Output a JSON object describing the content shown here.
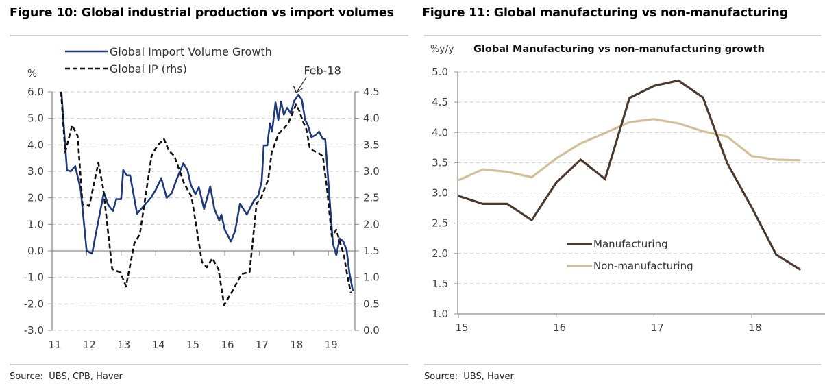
{
  "figures": {
    "fig10": {
      "title": "Figure 10: Global industrial production vs import volumes",
      "source": "Source:  UBS, CPB, Haver"
    },
    "fig11": {
      "title": "Figure 11: Global manufacturing vs non-manufacturing",
      "source": "Source:  UBS, Haver"
    }
  },
  "colors": {
    "import_line": "#1f3a7a",
    "ip_line": "#111111",
    "manufacturing": "#4a3a2e",
    "non_manufacturing": "#d2c09a",
    "grid": "#cccccc",
    "axis": "#8c8c8c",
    "tick_text": "#404040"
  },
  "chart_data": [
    {
      "id": "fig10",
      "type": "line",
      "title": "",
      "ylabel": "%",
      "y2label": "",
      "xlabel": "",
      "xlim": [
        11,
        19.85
      ],
      "ylim": [
        -3.0,
        6.0
      ],
      "y2lim": [
        0.0,
        4.5
      ],
      "x_ticks": [
        11,
        12,
        13,
        14,
        15,
        16,
        17,
        18,
        19
      ],
      "x_tick_labels": [
        "11",
        "12",
        "13",
        "14",
        "15",
        "16",
        "17",
        "18",
        "19"
      ],
      "y_ticks": [
        6.0,
        5.0,
        4.0,
        3.0,
        2.0,
        1.0,
        0.0,
        -1.0,
        -2.0,
        -3.0
      ],
      "y_tick_labels": [
        "6.0",
        "5.0",
        "4.0",
        "3.0",
        "2.0",
        "1.0",
        "0.0",
        "-1.0",
        "-2.0",
        "-3.0"
      ],
      "y2_ticks": [
        4.5,
        4.0,
        3.5,
        3.0,
        2.5,
        2.0,
        1.5,
        1.0,
        0.5,
        0.0
      ],
      "y2_tick_labels": [
        "4.5",
        "4.0",
        "3.5",
        "3.0",
        "2.5",
        "2.0",
        "1.5",
        "1.0",
        "0.5",
        "0.0"
      ],
      "grid": true,
      "legend_position": "top-left",
      "annotation": {
        "text": "Feb-18",
        "x": 18.13,
        "y": 5.89
      },
      "series": [
        {
          "name": "Global Import Volume Growth",
          "axis": "left",
          "style": "solid",
          "points": [
            [
              11.27,
              6.0
            ],
            [
              11.43,
              3.05
            ],
            [
              11.54,
              3.0
            ],
            [
              11.67,
              3.2
            ],
            [
              11.83,
              2.3
            ],
            [
              12.0,
              0.0
            ],
            [
              12.16,
              -0.1
            ],
            [
              12.26,
              0.6
            ],
            [
              12.5,
              2.2
            ],
            [
              12.62,
              1.75
            ],
            [
              12.76,
              1.5
            ],
            [
              12.86,
              1.95
            ],
            [
              13.0,
              1.95
            ],
            [
              13.06,
              3.05
            ],
            [
              13.16,
              2.85
            ],
            [
              13.26,
              2.85
            ],
            [
              13.46,
              1.4
            ],
            [
              13.66,
              1.7
            ],
            [
              13.86,
              2.0
            ],
            [
              14.0,
              2.3
            ],
            [
              14.16,
              2.74
            ],
            [
              14.32,
              2.0
            ],
            [
              14.46,
              2.17
            ],
            [
              14.62,
              2.74
            ],
            [
              14.8,
              3.3
            ],
            [
              14.92,
              3.05
            ],
            [
              15.02,
              2.48
            ],
            [
              15.15,
              2.14
            ],
            [
              15.25,
              2.4
            ],
            [
              15.4,
              1.58
            ],
            [
              15.58,
              2.43
            ],
            [
              15.7,
              1.58
            ],
            [
              15.84,
              1.14
            ],
            [
              15.9,
              1.37
            ],
            [
              16.0,
              0.8
            ],
            [
              16.18,
              0.36
            ],
            [
              16.3,
              0.75
            ],
            [
              16.44,
              1.78
            ],
            [
              16.64,
              1.37
            ],
            [
              16.84,
              1.89
            ],
            [
              16.97,
              2.09
            ],
            [
              17.07,
              2.61
            ],
            [
              17.13,
              3.98
            ],
            [
              17.23,
              3.98
            ],
            [
              17.31,
              4.81
            ],
            [
              17.37,
              4.5
            ],
            [
              17.47,
              5.6
            ],
            [
              17.55,
              4.94
            ],
            [
              17.63,
              5.63
            ],
            [
              17.71,
              5.14
            ],
            [
              17.81,
              5.4
            ],
            [
              17.91,
              5.19
            ],
            [
              18.01,
              5.66
            ],
            [
              18.13,
              5.89
            ],
            [
              18.23,
              5.71
            ],
            [
              18.33,
              4.94
            ],
            [
              18.41,
              4.73
            ],
            [
              18.51,
              4.29
            ],
            [
              18.63,
              4.37
            ],
            [
              18.73,
              4.5
            ],
            [
              18.83,
              4.24
            ],
            [
              18.91,
              4.21
            ],
            [
              18.97,
              3.13
            ],
            [
              19.13,
              0.28
            ],
            [
              19.23,
              -0.16
            ],
            [
              19.33,
              0.46
            ],
            [
              19.43,
              0.36
            ],
            [
              19.53,
              0.03
            ],
            [
              19.61,
              -0.83
            ],
            [
              19.71,
              -1.52
            ]
          ]
        },
        {
          "name": "Global IP (rhs)",
          "axis": "right",
          "style": "dashed",
          "points": [
            [
              11.26,
              4.5
            ],
            [
              11.38,
              3.36
            ],
            [
              11.58,
              3.87
            ],
            [
              11.74,
              3.67
            ],
            [
              11.88,
              2.38
            ],
            [
              12.08,
              2.35
            ],
            [
              12.34,
              3.16
            ],
            [
              12.48,
              2.68
            ],
            [
              12.74,
              1.16
            ],
            [
              12.98,
              1.09
            ],
            [
              13.14,
              0.83
            ],
            [
              13.38,
              1.64
            ],
            [
              13.54,
              1.81
            ],
            [
              13.88,
              3.29
            ],
            [
              14.04,
              3.48
            ],
            [
              14.24,
              3.61
            ],
            [
              14.38,
              3.39
            ],
            [
              14.54,
              3.29
            ],
            [
              14.82,
              2.78
            ],
            [
              15.04,
              2.52
            ],
            [
              15.34,
              1.29
            ],
            [
              15.48,
              1.19
            ],
            [
              15.64,
              1.36
            ],
            [
              15.82,
              1.15
            ],
            [
              15.98,
              0.48
            ],
            [
              16.24,
              0.76
            ],
            [
              16.48,
              1.06
            ],
            [
              16.72,
              1.1
            ],
            [
              16.92,
              2.39
            ],
            [
              17.06,
              2.51
            ],
            [
              17.26,
              2.85
            ],
            [
              17.36,
              3.36
            ],
            [
              17.56,
              3.71
            ],
            [
              17.7,
              3.8
            ],
            [
              17.84,
              3.91
            ],
            [
              17.94,
              4.06
            ],
            [
              18.06,
              4.26
            ],
            [
              18.16,
              4.14
            ],
            [
              18.26,
              3.95
            ],
            [
              18.36,
              3.8
            ],
            [
              18.46,
              3.45
            ],
            [
              18.56,
              3.39
            ],
            [
              18.7,
              3.35
            ],
            [
              18.84,
              3.29
            ],
            [
              18.96,
              2.68
            ],
            [
              19.1,
              1.77
            ],
            [
              19.23,
              1.9
            ],
            [
              19.33,
              1.68
            ],
            [
              19.45,
              1.42
            ],
            [
              19.55,
              1.03
            ],
            [
              19.65,
              0.71
            ]
          ]
        }
      ]
    },
    {
      "id": "fig11",
      "type": "line",
      "title": "Global Manufacturing vs non-manufacturing growth",
      "ylabel": "%y/y",
      "xlabel": "",
      "xlim": [
        15,
        18.75
      ],
      "ylim": [
        1.0,
        5.0
      ],
      "x_ticks": [
        15,
        16,
        17,
        18
      ],
      "x_tick_labels": [
        "15",
        "16",
        "17",
        "18"
      ],
      "y_ticks": [
        5.0,
        4.5,
        4.0,
        3.5,
        3.0,
        2.5,
        2.0,
        1.5,
        1.0
      ],
      "y_tick_labels": [
        "5.0",
        "4.5",
        "4.0",
        "3.5",
        "3.0",
        "2.5",
        "2.0",
        "1.5",
        "1.0"
      ],
      "grid": true,
      "legend_position": "center",
      "x": [
        15.0,
        15.25,
        15.5,
        15.75,
        16.0,
        16.25,
        16.5,
        16.75,
        17.0,
        17.25,
        17.5,
        17.75,
        18.0,
        18.25,
        18.5
      ],
      "series": [
        {
          "name": "Manufacturing",
          "values": [
            2.95,
            2.82,
            2.82,
            2.55,
            3.17,
            3.55,
            3.23,
            4.57,
            4.77,
            4.86,
            4.58,
            3.49,
            2.76,
            1.98,
            1.73
          ]
        },
        {
          "name": "Non-manufacturing",
          "values": [
            3.21,
            3.39,
            3.35,
            3.26,
            3.57,
            3.82,
            3.99,
            4.17,
            4.22,
            4.15,
            4.02,
            3.93,
            3.61,
            3.55,
            3.54
          ]
        }
      ]
    }
  ]
}
